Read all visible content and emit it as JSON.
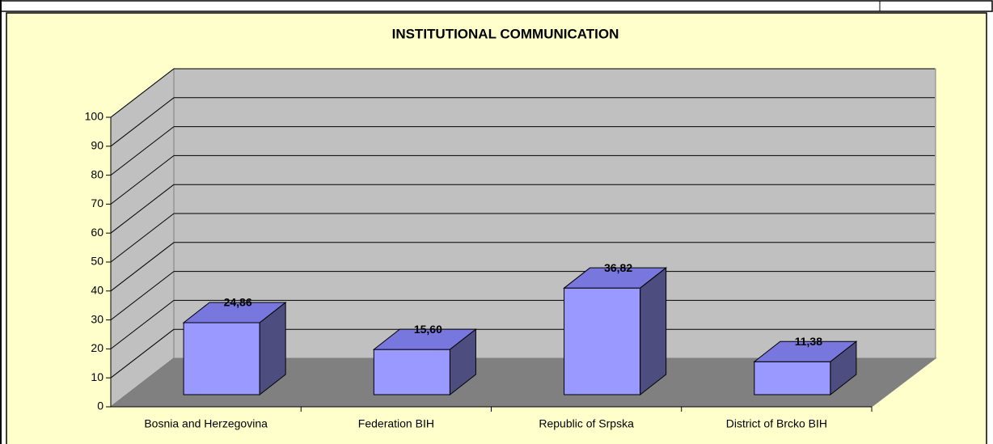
{
  "chart_data": {
    "type": "bar3d",
    "title": "INSTITUTIONAL COMMUNICATION",
    "categories": [
      "Bosnia and Herzegovina",
      "Federation BIH",
      "Republic of Srpska",
      "District of Brcko BIH"
    ],
    "values": [
      24.86,
      15.6,
      36.82,
      11.38
    ],
    "value_labels": [
      "24,86",
      "15,60",
      "36,82",
      "11,38"
    ],
    "color": "#9999ff",
    "ylim": [
      0,
      100
    ],
    "yticks": [
      0,
      10,
      20,
      30,
      40,
      50,
      60,
      70,
      80,
      90,
      100
    ],
    "grid": true
  }
}
